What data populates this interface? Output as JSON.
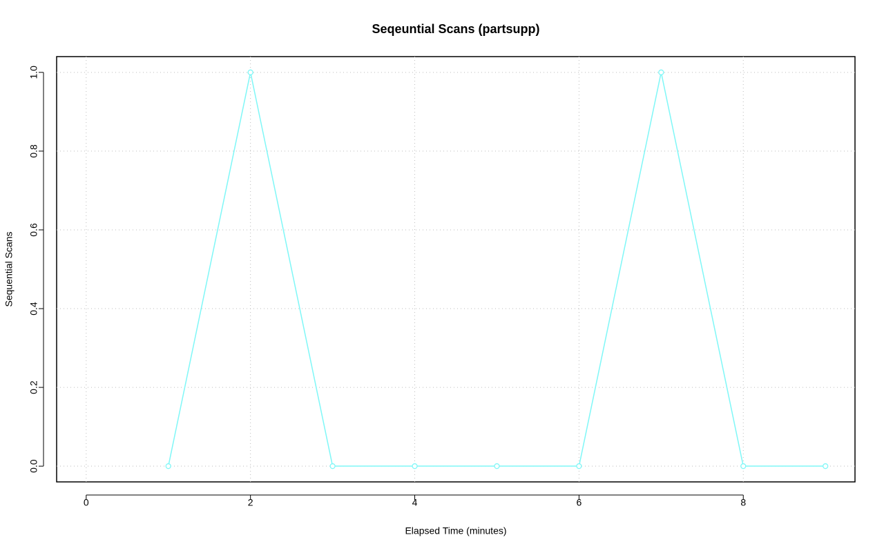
{
  "chart_data": {
    "type": "line",
    "title": "Seqeuntial Scans (partsupp)",
    "x_label": "Elapsed Time (minutes)",
    "y_label": "Sequential Scans",
    "x": [
      1,
      2,
      3,
      4,
      5,
      6,
      7,
      8,
      9
    ],
    "series": [
      {
        "name": "partsupp",
        "color": "#7ff7f7",
        "values": [
          0,
          1,
          0,
          0,
          0,
          0,
          1,
          0,
          0
        ]
      }
    ],
    "xlim": [
      -0.36,
      9.36
    ],
    "ylim": [
      -0.04,
      1.04
    ],
    "xticks": [
      0,
      2,
      4,
      6,
      8
    ],
    "yticks": [
      {
        "value": 0,
        "label": "0.0"
      },
      {
        "value": 0.2,
        "label": "0.2"
      },
      {
        "value": 0.4,
        "label": "0.4"
      },
      {
        "value": 0.6,
        "label": "0.6"
      },
      {
        "value": 0.8,
        "label": "0.8"
      },
      {
        "value": 1,
        "label": "1.0"
      }
    ],
    "grid": true
  }
}
